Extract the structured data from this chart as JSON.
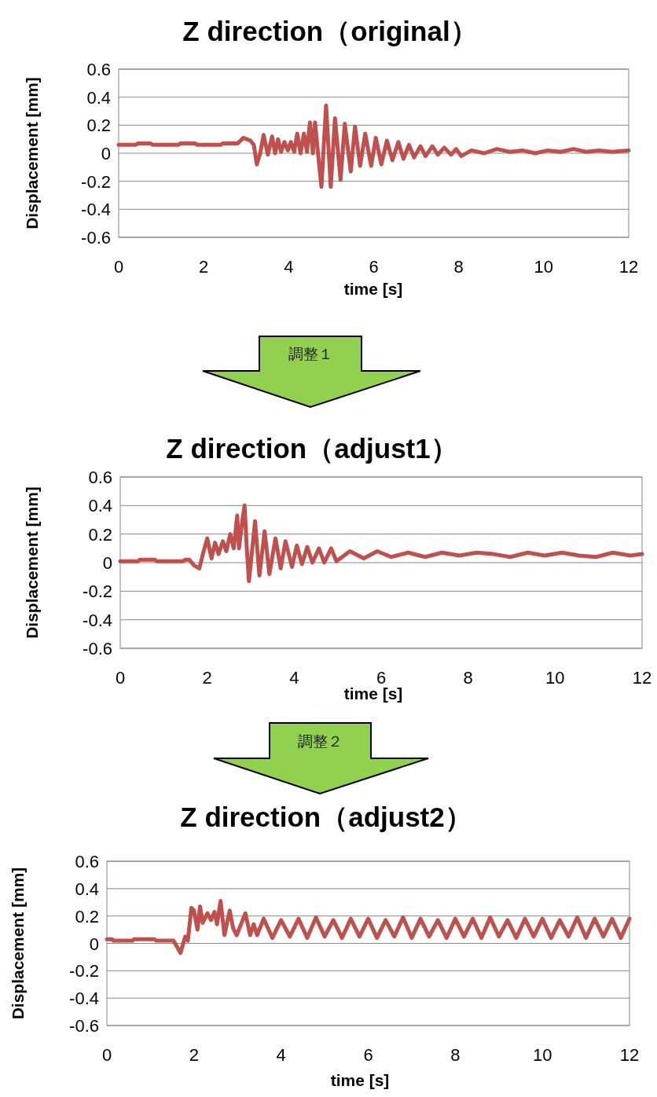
{
  "chart_data": [
    {
      "type": "line",
      "title": "Z direction（original）",
      "xlabel": "time [s]",
      "ylabel": "Displacement [mm]",
      "xlim": [
        0,
        12
      ],
      "ylim": [
        -0.6,
        0.6
      ],
      "xticks": [
        0,
        2,
        4,
        6,
        8,
        10,
        12
      ],
      "yticks": [
        -0.6,
        -0.4,
        -0.2,
        0,
        0.2,
        0.4,
        0.6
      ],
      "grid": "y",
      "series": [
        {
          "color": "#c0504d",
          "x": [
            0,
            0.4,
            0.45,
            0.75,
            0.8,
            1.4,
            1.45,
            1.8,
            1.85,
            2.4,
            2.45,
            2.8,
            2.93,
            3.1,
            3.18,
            3.25,
            3.33,
            3.41,
            3.51,
            3.61,
            3.68,
            3.75,
            3.82,
            3.9,
            3.98,
            4.05,
            4.13,
            4.2,
            4.28,
            4.36,
            4.43,
            4.5,
            4.57,
            4.62,
            4.69,
            4.77,
            4.88,
            4.99,
            5.09,
            5.22,
            5.32,
            5.46,
            5.56,
            5.68,
            5.8,
            5.94,
            6.05,
            6.18,
            6.31,
            6.44,
            6.58,
            6.7,
            6.83,
            6.95,
            7.1,
            7.22,
            7.38,
            7.51,
            7.66,
            7.82,
            7.94,
            8.06,
            8.3,
            8.6,
            8.9,
            9.2,
            9.5,
            9.8,
            10.1,
            10.4,
            10.7,
            11,
            11.3,
            11.6,
            12
          ],
          "values": [
            0.06,
            0.06,
            0.07,
            0.07,
            0.06,
            0.06,
            0.07,
            0.07,
            0.06,
            0.06,
            0.07,
            0.07,
            0.11,
            0.09,
            0.06,
            -0.08,
            0.0,
            0.13,
            -0.01,
            0.12,
            0.0,
            0.1,
            0.01,
            0.08,
            0.02,
            0.08,
            0.01,
            0.14,
            0.0,
            0.14,
            0.01,
            0.22,
            0.0,
            0.22,
            0.0,
            -0.24,
            0.34,
            -0.24,
            0.25,
            -0.19,
            0.21,
            -0.13,
            0.19,
            -0.09,
            0.14,
            -0.09,
            0.11,
            -0.08,
            0.09,
            -0.05,
            0.08,
            -0.04,
            0.06,
            -0.03,
            0.05,
            -0.02,
            0.05,
            -0.01,
            0.04,
            -0.01,
            0.03,
            -0.02,
            0.02,
            0.0,
            0.03,
            0.01,
            0.02,
            0.0,
            0.02,
            0.01,
            0.03,
            0.01,
            0.02,
            0.01,
            0.02
          ]
        }
      ]
    },
    {
      "type": "line",
      "title": "Z direction（adjust1）",
      "xlabel": "time [s]",
      "ylabel": "Displacement [mm]",
      "xlim": [
        0,
        12
      ],
      "ylim": [
        -0.6,
        0.6
      ],
      "xticks": [
        0,
        2,
        4,
        6,
        8,
        10,
        12
      ],
      "yticks": [
        -0.6,
        -0.4,
        -0.2,
        0,
        0.2,
        0.4,
        0.6
      ],
      "grid": "y",
      "annotations": [
        "調整１"
      ],
      "series": [
        {
          "color": "#c0504d",
          "x": [
            0,
            0.41,
            0.45,
            0.8,
            0.84,
            1.43,
            1.5,
            1.59,
            1.7,
            1.82,
            1.9,
            2.0,
            2.1,
            2.18,
            2.26,
            2.36,
            2.44,
            2.53,
            2.61,
            2.69,
            2.73,
            2.81,
            2.86,
            2.91,
            2.96,
            3.1,
            3.2,
            3.32,
            3.43,
            3.57,
            3.69,
            3.8,
            3.95,
            4.06,
            4.18,
            4.3,
            4.42,
            4.57,
            4.69,
            4.85,
            4.97,
            5.28,
            5.6,
            5.91,
            6.23,
            6.62,
            7.01,
            7.4,
            7.8,
            8.19,
            8.58,
            8.97,
            9.37,
            9.76,
            10.16,
            10.55,
            10.94,
            11.33,
            11.73,
            12
          ],
          "values": [
            0.01,
            0.01,
            0.02,
            0.02,
            0.01,
            0.01,
            0.02,
            0.02,
            -0.02,
            -0.04,
            0.06,
            0.17,
            0.03,
            0.14,
            0.06,
            0.15,
            0.08,
            0.2,
            0.1,
            0.33,
            0.1,
            0.3,
            0.4,
            0.1,
            -0.13,
            0.29,
            -0.09,
            0.22,
            -0.08,
            0.17,
            -0.04,
            0.15,
            -0.03,
            0.12,
            -0.01,
            0.11,
            0.0,
            0.1,
            0.0,
            0.1,
            0.01,
            0.08,
            0.03,
            0.08,
            0.04,
            0.07,
            0.04,
            0.07,
            0.05,
            0.07,
            0.06,
            0.04,
            0.07,
            0.05,
            0.07,
            0.05,
            0.04,
            0.07,
            0.05,
            0.06
          ]
        }
      ]
    },
    {
      "type": "line",
      "title": "Z direction（adjust2）",
      "xlabel": "time [s]",
      "ylabel": "Displacement [mm]",
      "xlim": [
        0,
        12
      ],
      "ylim": [
        -0.6,
        0.6
      ],
      "xticks": [
        0,
        2,
        4,
        6,
        8,
        10,
        12
      ],
      "yticks": [
        -0.6,
        -0.4,
        -0.2,
        0,
        0.2,
        0.4,
        0.6
      ],
      "grid": "y",
      "annotations": [
        "調整２"
      ],
      "series": [
        {
          "color": "#c0504d",
          "x": [
            0,
            0.12,
            0.15,
            0.59,
            0.62,
            1.1,
            1.13,
            1.53,
            1.69,
            1.8,
            1.86,
            1.94,
            2.0,
            2.08,
            2.14,
            2.2,
            2.31,
            2.39,
            2.47,
            2.53,
            2.61,
            2.7,
            2.82,
            2.9,
            2.98,
            3.18,
            3.29,
            3.37,
            3.45,
            3.6,
            3.8,
            4.0,
            4.2,
            4.4,
            4.6,
            4.8,
            5.0,
            5.2,
            5.4,
            5.6,
            5.8,
            6.0,
            6.2,
            6.4,
            6.6,
            6.8,
            7.0,
            7.2,
            7.4,
            7.6,
            7.8,
            8.0,
            8.2,
            8.4,
            8.6,
            8.8,
            9.0,
            9.2,
            9.4,
            9.6,
            9.8,
            10.0,
            10.2,
            10.4,
            10.6,
            10.8,
            11.0,
            11.2,
            11.4,
            11.6,
            11.8,
            12.0
          ],
          "values": [
            0.03,
            0.03,
            0.02,
            0.02,
            0.03,
            0.03,
            0.02,
            0.02,
            -0.07,
            0.05,
            0.02,
            0.26,
            0.24,
            0.1,
            0.27,
            0.15,
            0.22,
            0.17,
            0.23,
            0.14,
            0.31,
            0.06,
            0.24,
            0.11,
            0.06,
            0.22,
            0.06,
            0.14,
            0.06,
            0.18,
            0.04,
            0.17,
            0.05,
            0.18,
            0.04,
            0.19,
            0.05,
            0.17,
            0.04,
            0.18,
            0.05,
            0.18,
            0.04,
            0.17,
            0.05,
            0.19,
            0.04,
            0.18,
            0.05,
            0.17,
            0.04,
            0.18,
            0.05,
            0.18,
            0.04,
            0.19,
            0.05,
            0.17,
            0.04,
            0.18,
            0.05,
            0.18,
            0.04,
            0.17,
            0.05,
            0.19,
            0.04,
            0.18,
            0.05,
            0.18,
            0.04,
            0.18
          ]
        }
      ]
    }
  ]
}
